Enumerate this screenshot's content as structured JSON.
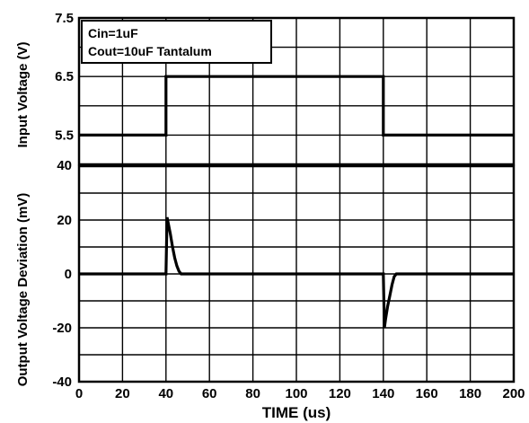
{
  "chart_data": [
    {
      "type": "line",
      "ylabel": "Input Voltage (V)",
      "ylim": [
        5,
        7.5
      ],
      "yticks": [
        5.5,
        6.5,
        7.5
      ],
      "xlim": [
        0,
        200
      ],
      "grid": true,
      "legend": {
        "placement": "top-left",
        "lines": [
          "Cin=1uF",
          "Cout=10uF Tantalum"
        ]
      },
      "series": [
        {
          "x": [
            0,
            40,
            40,
            140,
            140,
            200
          ],
          "y": [
            5.5,
            5.5,
            6.5,
            6.5,
            5.5,
            5.5
          ]
        }
      ]
    },
    {
      "type": "line",
      "ylabel": "Output Voltage Deviation (mV)",
      "xlabel": "TIME (us)",
      "ylim": [
        -40,
        40
      ],
      "yticks": [
        -40,
        -20,
        0,
        20,
        40
      ],
      "xlim": [
        0,
        200
      ],
      "xticks": [
        0,
        20,
        40,
        60,
        80,
        100,
        120,
        140,
        160,
        180,
        200
      ],
      "grid": true,
      "series": [
        {
          "x": [
            0,
            40,
            40.5,
            41,
            42,
            43,
            44,
            45,
            46,
            47,
            48,
            140,
            140.5,
            141,
            142,
            143,
            144,
            145,
            146,
            200
          ],
          "y": [
            0,
            0,
            21,
            19,
            15,
            10,
            6,
            3,
            1,
            0,
            0,
            0,
            -20,
            -17,
            -12,
            -8,
            -4,
            -1,
            0,
            0
          ]
        }
      ]
    }
  ]
}
